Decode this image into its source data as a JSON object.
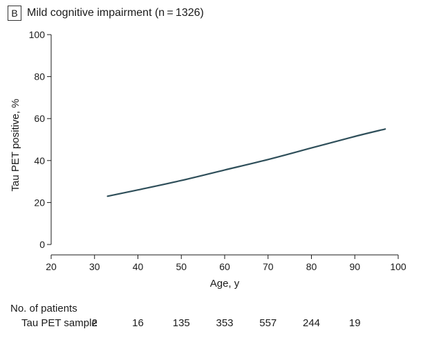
{
  "panel": {
    "letter": "B",
    "title": "Mild cognitive impairment (n = 1326)"
  },
  "chart_data": {
    "type": "line",
    "title": "Mild cognitive impairment (n = 1326)",
    "xlabel": "Age, y",
    "ylabel": "Tau PET positive, %",
    "xlim": [
      20,
      100
    ],
    "ylim": [
      0,
      100
    ],
    "x_ticks": [
      20,
      30,
      40,
      50,
      60,
      70,
      80,
      90,
      100
    ],
    "y_ticks": [
      0,
      20,
      40,
      60,
      80,
      100
    ],
    "grid": false,
    "series": [
      {
        "name": "Tau PET positive",
        "color": "#2f4f5a",
        "x": [
          33,
          40,
          50,
          60,
          70,
          80,
          90,
          97
        ],
        "y": [
          23,
          26,
          30.5,
          35.5,
          40.5,
          46,
          51.5,
          55
        ]
      }
    ]
  },
  "patients_table": {
    "header": "No. of patients",
    "row_label": "Tau PET sample",
    "ages": [
      30,
      40,
      50,
      60,
      70,
      80,
      90
    ],
    "counts": [
      "2",
      "16",
      "135",
      "353",
      "557",
      "244",
      "19"
    ]
  }
}
